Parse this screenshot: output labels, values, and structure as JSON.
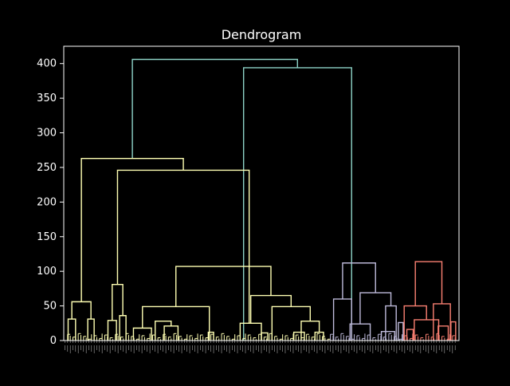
{
  "chart_data": {
    "type": "dendrogram",
    "title": "Dendrogram",
    "xlabel": "",
    "ylabel": "",
    "ylim": [
      0,
      425
    ],
    "yticks": [
      0,
      50,
      100,
      150,
      200,
      250,
      300,
      350,
      400
    ],
    "grid": false,
    "legend": "none",
    "leaf_labels_legible": false,
    "colors": {
      "background": "#000000",
      "axes_text": "#ffffff",
      "root_links": "#8dd3c7",
      "cluster_1": "#ffffb3",
      "cluster_2": "#bebada",
      "cluster_3": "#fb8072"
    },
    "merges": [
      {
        "left": 25.4,
        "right": 87.6,
        "height": 406,
        "series": "root_links"
      },
      {
        "left": 67.3,
        "right": 108.0,
        "height": 394,
        "series": "root_links"
      },
      {
        "left": 6.2,
        "right": 44.6,
        "height": 263,
        "series": "cluster_1"
      },
      {
        "left": 19.8,
        "right": 69.4,
        "height": 246,
        "series": "cluster_1"
      },
      {
        "left": 41.8,
        "right": 77.6,
        "height": 107,
        "series": "cluster_1"
      },
      {
        "left": 2.6,
        "right": 9.8,
        "height": 56,
        "series": "cluster_1"
      },
      {
        "left": 17.8,
        "right": 21.8,
        "height": 81,
        "series": "cluster_1"
      },
      {
        "left": 29.2,
        "right": 54.4,
        "height": 49,
        "series": "cluster_1"
      },
      {
        "left": 70.0,
        "right": 85.2,
        "height": 65,
        "series": "cluster_1"
      },
      {
        "left": 1.2,
        "right": 4.0,
        "height": 31,
        "series": "cluster_1"
      },
      {
        "left": 8.6,
        "right": 11.0,
        "height": 31,
        "series": "cluster_1"
      },
      {
        "left": 16.2,
        "right": 19.4,
        "height": 29,
        "series": "cluster_1"
      },
      {
        "left": 20.6,
        "right": 23.0,
        "height": 36,
        "series": "cluster_1"
      },
      {
        "left": 25.8,
        "right": 32.6,
        "height": 18,
        "series": "cluster_1"
      },
      {
        "left": 34.0,
        "right": 40.0,
        "height": 28,
        "series": "cluster_1"
      },
      {
        "left": 37.4,
        "right": 42.6,
        "height": 21,
        "series": "cluster_1"
      },
      {
        "left": 66.0,
        "right": 74.0,
        "height": 25,
        "series": "cluster_1"
      },
      {
        "left": 78.0,
        "right": 92.4,
        "height": 49,
        "series": "cluster_1"
      },
      {
        "left": 89.0,
        "right": 95.8,
        "height": 28,
        "series": "cluster_1"
      },
      {
        "left": 54.0,
        "right": 56.0,
        "height": 12,
        "series": "cluster_1"
      },
      {
        "left": 74.0,
        "right": 76.4,
        "height": 11,
        "series": "cluster_1"
      },
      {
        "left": 86.2,
        "right": 90.2,
        "height": 12,
        "series": "cluster_1"
      },
      {
        "left": 94.2,
        "right": 97.4,
        "height": 12,
        "series": "cluster_1"
      },
      {
        "left": 104.6,
        "right": 117.0,
        "height": 112,
        "series": "cluster_2"
      },
      {
        "left": 101.2,
        "right": 108.0,
        "height": 60,
        "series": "cluster_2"
      },
      {
        "left": 111.2,
        "right": 122.8,
        "height": 69,
        "series": "cluster_2"
      },
      {
        "left": 120.8,
        "right": 124.8,
        "height": 50,
        "series": "cluster_2"
      },
      {
        "left": 107.4,
        "right": 115.0,
        "height": 24,
        "series": "cluster_2"
      },
      {
        "left": 119.2,
        "right": 124.2,
        "height": 13,
        "series": "cluster_2"
      },
      {
        "left": 125.6,
        "right": 127.4,
        "height": 26,
        "series": "cluster_2"
      },
      {
        "left": 132.0,
        "right": 142.0,
        "height": 114,
        "series": "cluster_3"
      },
      {
        "left": 127.8,
        "right": 136.2,
        "height": 50,
        "series": "cluster_3"
      },
      {
        "left": 138.8,
        "right": 145.2,
        "height": 53,
        "series": "cluster_3"
      },
      {
        "left": 131.6,
        "right": 140.8,
        "height": 30,
        "series": "cluster_3"
      },
      {
        "left": 128.8,
        "right": 131.2,
        "height": 16,
        "series": "cluster_3"
      },
      {
        "left": 140.6,
        "right": 144.4,
        "height": 21,
        "series": "cluster_3"
      },
      {
        "left": 145.4,
        "right": 147.2,
        "height": 27,
        "series": "cluster_3"
      }
    ],
    "leaf_stubs": {
      "cluster_1": [
        1,
        2,
        3,
        4,
        5,
        6,
        7,
        8,
        9,
        10,
        11,
        12,
        13,
        14,
        15,
        16,
        17,
        18,
        19,
        20,
        21,
        22,
        23,
        24,
        25,
        26,
        27,
        28,
        29,
        30,
        31,
        32,
        33,
        34,
        35,
        36,
        37,
        38,
        39,
        40,
        41,
        42,
        43,
        44,
        45,
        46,
        47,
        48,
        49,
        50,
        51,
        52,
        53,
        54,
        55,
        56,
        57,
        58,
        59,
        60,
        61,
        62,
        63,
        64,
        65,
        66,
        67,
        68,
        69,
        70,
        71,
        72,
        73,
        74,
        75,
        76,
        77,
        78,
        79,
        80,
        81,
        82,
        83,
        84,
        85,
        86,
        87,
        88,
        89,
        90,
        91,
        92,
        93,
        94,
        95,
        96,
        97,
        98,
        99
      ],
      "cluster_2": [
        100,
        101,
        102,
        103,
        104,
        105,
        106,
        107,
        108,
        109,
        110,
        111,
        112,
        113,
        114,
        115,
        116,
        117,
        118,
        119,
        120,
        121,
        122,
        123,
        124,
        125,
        126,
        127
      ],
      "cluster_3": [
        128,
        129,
        130,
        131,
        132,
        133,
        134,
        135,
        136,
        137,
        138,
        139,
        140,
        141,
        142,
        143,
        144,
        145,
        146,
        147
      ]
    }
  }
}
